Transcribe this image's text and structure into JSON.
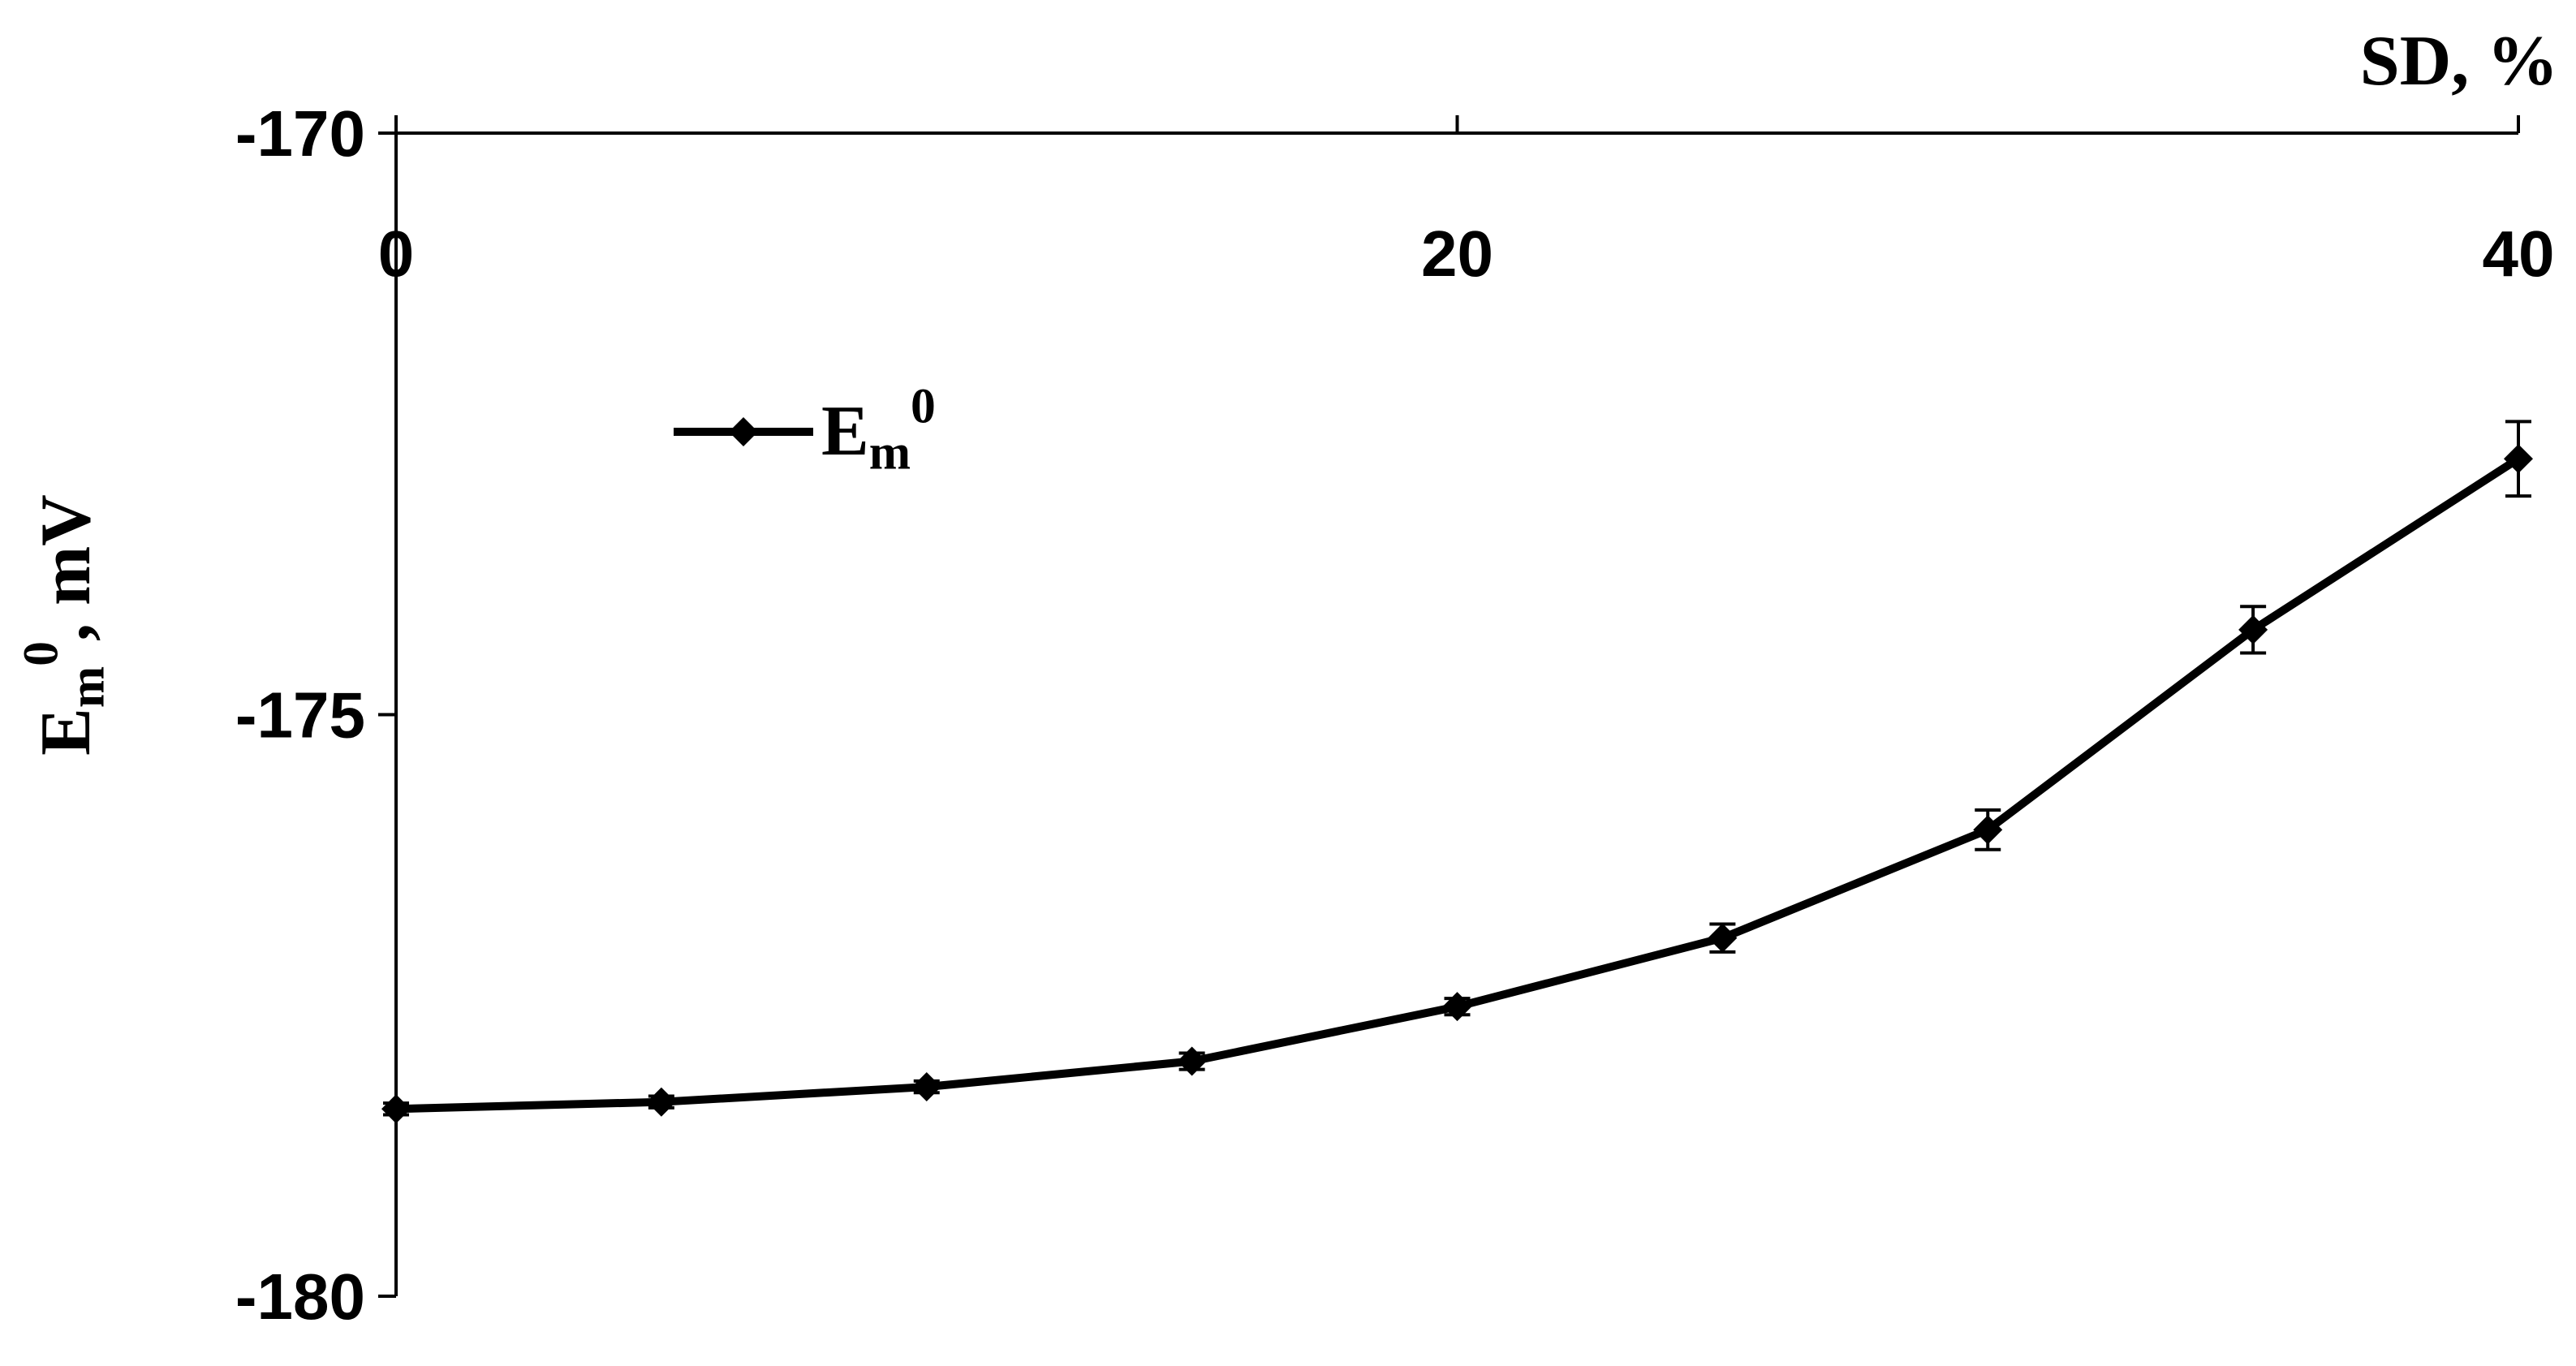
{
  "chart_data": {
    "type": "line",
    "xlabel": "SD, %",
    "ylabel": "Em0, mV",
    "x": [
      0,
      5,
      10,
      15,
      20,
      25,
      30,
      35,
      40
    ],
    "series": [
      {
        "name": "Em0",
        "color": "#000000",
        "values": [
          -178.39,
          -178.33,
          -178.2,
          -177.98,
          -177.51,
          -176.92,
          -175.99,
          -174.27,
          -172.8
        ],
        "errors": [
          0.05,
          0.05,
          0.05,
          0.07,
          0.07,
          0.12,
          0.17,
          0.2,
          0.32
        ]
      }
    ],
    "xlim": [
      0,
      40
    ],
    "xticks": [
      0,
      20,
      40
    ],
    "ylim": [
      -180,
      -170
    ],
    "yticks": [
      -170,
      -175,
      -180
    ],
    "grid": false,
    "legend": "upper left"
  }
}
